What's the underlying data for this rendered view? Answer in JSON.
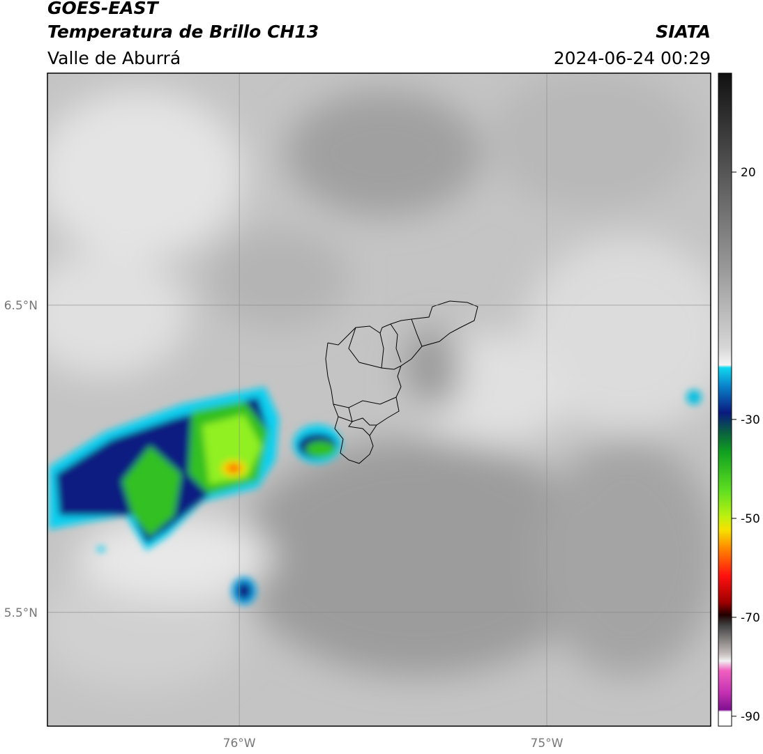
{
  "header": {
    "title": "GOES-EAST",
    "subtitle": "Temperatura de Brillo CH13",
    "region": "Valle de Aburrá",
    "source": "SIATA",
    "datetime": "2024-06-24 00:29"
  },
  "map": {
    "lonlim": [
      -76.624,
      -74.467
    ],
    "latlim": [
      5.13,
      7.255
    ],
    "lonticks": [
      {
        "value": -76,
        "label": "76°W"
      },
      {
        "value": -75,
        "label": "75°W"
      }
    ],
    "latticks": [
      {
        "value": 6.5,
        "label": "6.5°N"
      },
      {
        "value": 5.5,
        "label": "5.5°N"
      }
    ],
    "colorbar": {
      "lim": [
        -92,
        40
      ],
      "ticks": [
        20,
        -30,
        -50,
        -70,
        -90
      ]
    }
  }
}
